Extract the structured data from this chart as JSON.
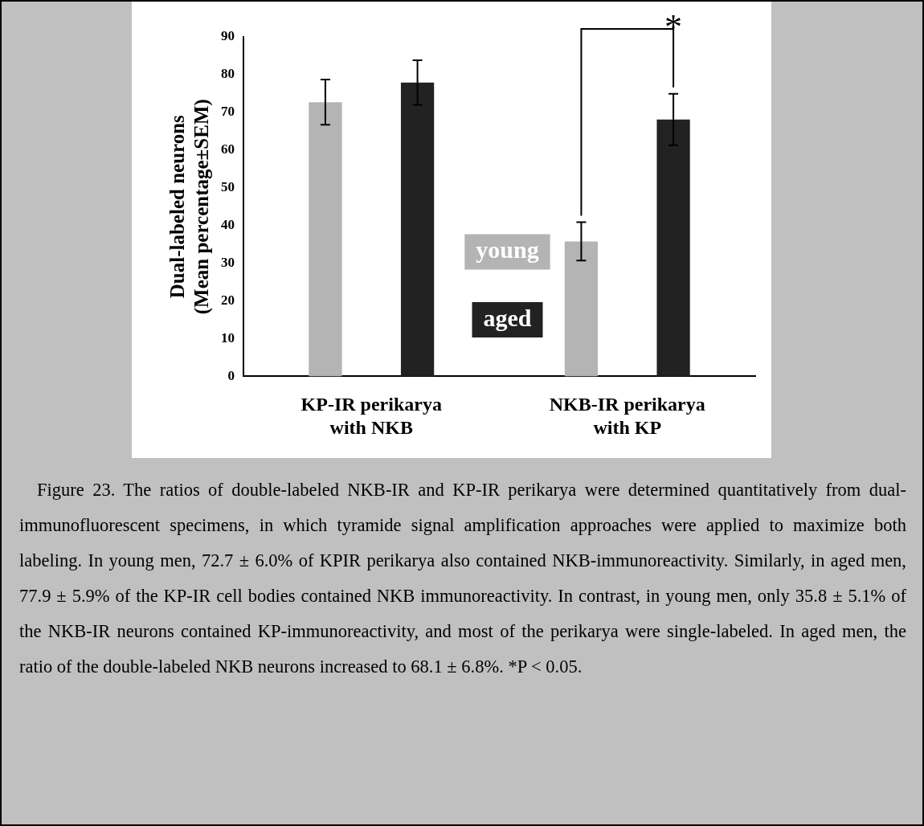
{
  "chart_data": {
    "type": "bar",
    "ylabel": "Dual-labeled neurons\n(Mean percentage±SEM)",
    "categories": [
      "KP-IR perikarya\nwith NKB",
      "NKB-IR perikarya\nwith KP"
    ],
    "series": [
      {
        "name": "young",
        "color": "#b4b4b4",
        "values": [
          72.7,
          35.8
        ],
        "errors": [
          6.0,
          5.1
        ]
      },
      {
        "name": "aged",
        "color": "#222222",
        "values": [
          77.9,
          68.1
        ],
        "errors": [
          5.9,
          6.8
        ]
      }
    ],
    "ylim": [
      0,
      90
    ],
    "yticks": [
      0,
      10,
      20,
      30,
      40,
      50,
      60,
      70,
      80,
      90
    ],
    "grid": false,
    "legend": "center",
    "annotations": [
      "*",
      "Figure 23. The ratios of double-labeled NKB-IR and KP-IR perikarya were determined quantitatively from dual-immunofluorescent specimens, in which tyramide signal amplification approaches were applied to maximize both labeling. In young men, 72.7 ± 6.0% of KPIR perikarya also contained NKB-immunoreactivity. Similarly, in aged men, 77.9 ± 5.9% of the KP-IR cell bodies contained NKB immunoreactivity. In contrast, in young men, only 35.8 ± 5.1% of the NKB-IR neurons contained KP-immunoreactivity, and most of the perikarya were single-labeled. In aged men, the ratio of the double-labeled NKB neurons increased to 68.1 ± 6.8%. *P < 0.05."
    ]
  }
}
